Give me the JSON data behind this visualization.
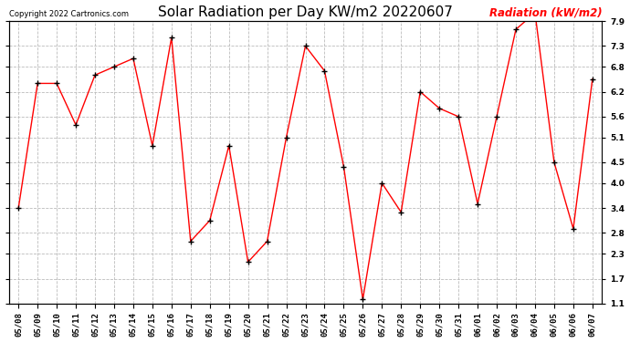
{
  "title": "Solar Radiation per Day KW/m2 20220607",
  "copyright": "Copyright 2022 Cartronics.com",
  "legend_label": "Radiation (kW/m2)",
  "dates": [
    "05/08",
    "05/09",
    "05/10",
    "05/11",
    "05/12",
    "05/13",
    "05/14",
    "05/15",
    "05/16",
    "05/17",
    "05/18",
    "05/19",
    "05/20",
    "05/21",
    "05/22",
    "05/23",
    "05/24",
    "05/25",
    "05/26",
    "05/27",
    "05/28",
    "05/29",
    "05/30",
    "05/31",
    "06/01",
    "06/02",
    "06/03",
    "06/04",
    "06/05",
    "06/06",
    "06/07"
  ],
  "values": [
    3.4,
    6.4,
    6.4,
    5.4,
    6.6,
    6.8,
    7.0,
    4.9,
    7.5,
    2.6,
    3.1,
    4.9,
    2.1,
    2.6,
    5.1,
    7.3,
    6.7,
    4.4,
    1.2,
    4.0,
    3.3,
    6.2,
    5.8,
    5.6,
    3.5,
    5.6,
    7.7,
    8.1,
    4.5,
    2.9,
    6.5
  ],
  "line_color": "red",
  "marker": "+",
  "marker_color": "black",
  "ylim": [
    1.1,
    7.9
  ],
  "yticks": [
    1.1,
    1.7,
    2.3,
    2.8,
    3.4,
    4.0,
    4.5,
    5.1,
    5.6,
    6.2,
    6.8,
    7.3,
    7.9
  ],
  "background_color": "white",
  "grid_color": "#bbbbbb",
  "title_fontsize": 11,
  "tick_fontsize": 6.5,
  "legend_fontsize": 8.5,
  "copyright_fontsize": 6
}
